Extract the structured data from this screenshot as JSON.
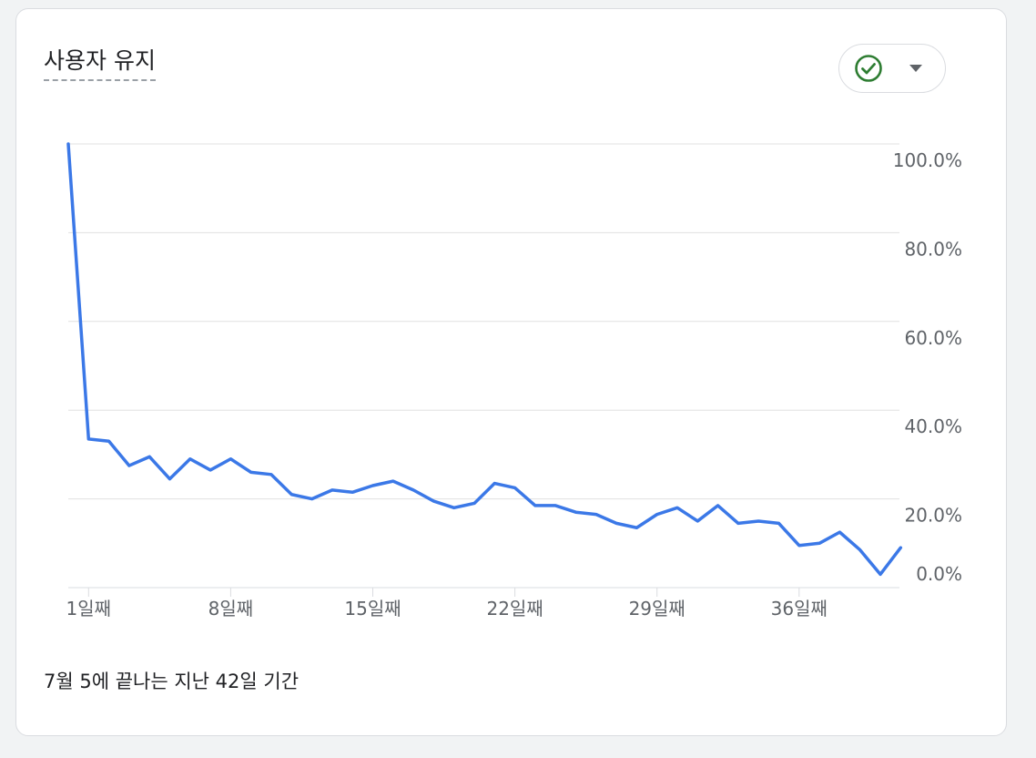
{
  "card": {
    "title": "사용자 유지",
    "status_icon": "check-circle-icon",
    "dropdown_icon": "caret-down-icon",
    "footer_note": "7월 5에 끝나는 지난 42일 기간"
  },
  "colors": {
    "line": "#3b78e7",
    "check": "#2e7d32",
    "grid": "#e0e0e0",
    "axis_text": "#5f6368"
  },
  "chart_data": {
    "type": "line",
    "title": "사용자 유지",
    "xlabel": "",
    "ylabel": "",
    "x": [
      0,
      1,
      2,
      3,
      4,
      5,
      6,
      7,
      8,
      9,
      10,
      11,
      12,
      13,
      14,
      15,
      16,
      17,
      18,
      19,
      20,
      21,
      22,
      23,
      24,
      25,
      26,
      27,
      28,
      29,
      30,
      31,
      32,
      33,
      34,
      35,
      36,
      37,
      38,
      39,
      40,
      41
    ],
    "series": [
      {
        "values": [
          100.0,
          33.5,
          33.0,
          27.5,
          29.5,
          24.5,
          29.0,
          26.5,
          29.0,
          26.0,
          25.5,
          21.0,
          20.0,
          22.0,
          21.5,
          23.0,
          24.0,
          22.0,
          19.5,
          18.0,
          19.0,
          23.5,
          22.5,
          18.5,
          18.5,
          17.0,
          16.5,
          14.5,
          13.5,
          16.5,
          18.0,
          15.0,
          18.5,
          14.5,
          15.0,
          14.5,
          9.5,
          10.0,
          12.5,
          8.5,
          3.0,
          9.0
        ]
      }
    ],
    "x_ticks": [
      {
        "x": 1,
        "label": "1일째"
      },
      {
        "x": 8,
        "label": "8일째"
      },
      {
        "x": 15,
        "label": "15일째"
      },
      {
        "x": 22,
        "label": "22일째"
      },
      {
        "x": 29,
        "label": "29일째"
      },
      {
        "x": 36,
        "label": "36일째"
      }
    ],
    "y_ticks": [
      {
        "y": 100,
        "label": "100.0%"
      },
      {
        "y": 80,
        "label": "80.0%"
      },
      {
        "y": 60,
        "label": "60.0%"
      },
      {
        "y": 40,
        "label": "40.0%"
      },
      {
        "y": 20,
        "label": "20.0%"
      },
      {
        "y": 0,
        "label": "0.0%"
      }
    ],
    "ylim": [
      0,
      100
    ],
    "xlim": [
      0,
      41
    ],
    "grid": true,
    "y_axis_side": "right"
  }
}
